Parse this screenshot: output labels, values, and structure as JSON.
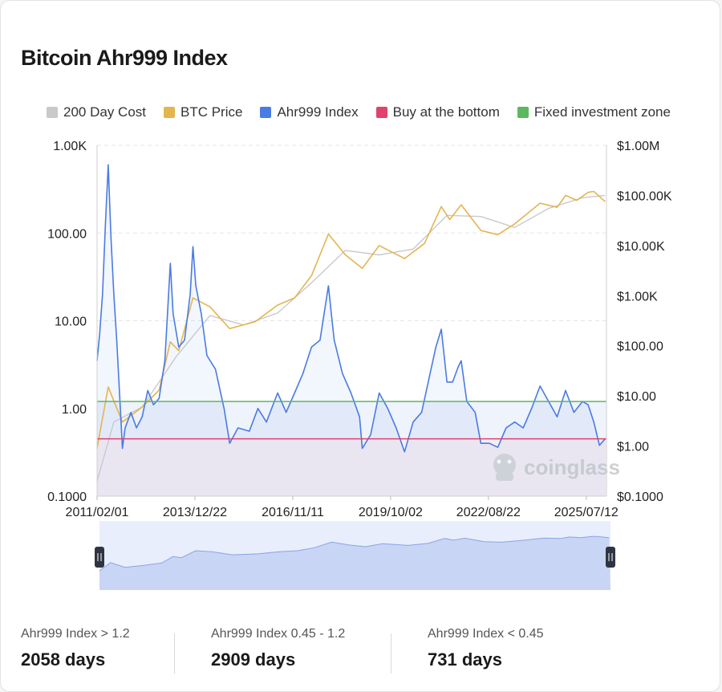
{
  "page": {
    "title": "Bitcoin Ahr999 Index",
    "watermark": "coinglass"
  },
  "legend": [
    {
      "label": "200 Day Cost",
      "color": "#c9c9cc"
    },
    {
      "label": "BTC Price",
      "color": "#e3b54f"
    },
    {
      "label": "Ahr999 Index",
      "color": "#4a7be3"
    },
    {
      "label": "Buy at the bottom",
      "color": "#e0416d"
    },
    {
      "label": "Fixed investment zone",
      "color": "#5cb85c"
    }
  ],
  "chart_data": {
    "type": "line",
    "title": "Bitcoin Ahr999 Index",
    "x_tick_labels": [
      "2011/02/01",
      "2013/12/22",
      "2016/11/11",
      "2019/10/02",
      "2022/08/22",
      "2025/07/12"
    ],
    "y_left": {
      "scale": "log",
      "range": [
        0.1,
        1000
      ],
      "tick_labels": [
        "1.00K",
        "100.00",
        "10.00",
        "1.00",
        "0.1000"
      ]
    },
    "y_right": {
      "scale": "log",
      "range": [
        0.1,
        1000000
      ],
      "tick_labels": [
        "$1.00M",
        "$100.00K",
        "$10.00K",
        "$1.00K",
        "$100.00",
        "$10.00",
        "$1.00",
        "$0.1000"
      ]
    },
    "grid": "horizontal dashed",
    "legend_position": "top",
    "thresholds": [
      {
        "name": "Fixed investment zone",
        "value": 1.2,
        "color": "#5cb85c"
      },
      {
        "name": "Buy at the bottom",
        "value": 0.45,
        "color": "#e0416d"
      }
    ],
    "series": [
      {
        "name": "Ahr999 Index",
        "axis": "left",
        "color": "#4a7be3",
        "points": [
          [
            "2011-02-01",
            3.5
          ],
          [
            "2011-03-01",
            7
          ],
          [
            "2011-04-01",
            20
          ],
          [
            "2011-05-01",
            120
          ],
          [
            "2011-06-01",
            600
          ],
          [
            "2011-07-01",
            90
          ],
          [
            "2011-08-01",
            20
          ],
          [
            "2011-09-01",
            6
          ],
          [
            "2011-10-01",
            1.5
          ],
          [
            "2011-11-01",
            0.35
          ],
          [
            "2011-12-01",
            0.6
          ],
          [
            "2012-02-01",
            0.9
          ],
          [
            "2012-04-01",
            0.6
          ],
          [
            "2012-06-01",
            0.8
          ],
          [
            "2012-08-01",
            1.6
          ],
          [
            "2012-10-01",
            1.1
          ],
          [
            "2012-12-01",
            1.3
          ],
          [
            "2013-02-01",
            3.5
          ],
          [
            "2013-04-01",
            45
          ],
          [
            "2013-05-01",
            12
          ],
          [
            "2013-07-01",
            5
          ],
          [
            "2013-09-01",
            6
          ],
          [
            "2013-11-01",
            20
          ],
          [
            "2013-12-01",
            70
          ],
          [
            "2014-01-01",
            25
          ],
          [
            "2014-03-01",
            12
          ],
          [
            "2014-05-01",
            4
          ],
          [
            "2014-08-01",
            2.8
          ],
          [
            "2014-11-01",
            1
          ],
          [
            "2015-01-01",
            0.4
          ],
          [
            "2015-04-01",
            0.6
          ],
          [
            "2015-08-01",
            0.55
          ],
          [
            "2015-11-01",
            1
          ],
          [
            "2016-02-01",
            0.7
          ],
          [
            "2016-06-01",
            1.5
          ],
          [
            "2016-09-01",
            0.9
          ],
          [
            "2016-12-01",
            1.5
          ],
          [
            "2017-03-01",
            2.5
          ],
          [
            "2017-06-01",
            5
          ],
          [
            "2017-09-01",
            6
          ],
          [
            "2017-12-01",
            25
          ],
          [
            "2018-01-01",
            12
          ],
          [
            "2018-02-01",
            6
          ],
          [
            "2018-05-01",
            2.5
          ],
          [
            "2018-08-01",
            1.5
          ],
          [
            "2018-11-01",
            0.8
          ],
          [
            "2018-12-01",
            0.35
          ],
          [
            "2019-03-01",
            0.5
          ],
          [
            "2019-06-01",
            1.5
          ],
          [
            "2019-09-01",
            1
          ],
          [
            "2019-12-01",
            0.6
          ],
          [
            "2020-03-01",
            0.32
          ],
          [
            "2020-06-01",
            0.7
          ],
          [
            "2020-09-01",
            0.9
          ],
          [
            "2020-12-01",
            2.5
          ],
          [
            "2021-02-01",
            5
          ],
          [
            "2021-04-01",
            8
          ],
          [
            "2021-06-01",
            2
          ],
          [
            "2021-08-01",
            2
          ],
          [
            "2021-10-01",
            3
          ],
          [
            "2021-11-01",
            3.5
          ],
          [
            "2022-01-01",
            1.2
          ],
          [
            "2022-04-01",
            0.9
          ],
          [
            "2022-06-01",
            0.4
          ],
          [
            "2022-09-01",
            0.4
          ],
          [
            "2022-12-01",
            0.36
          ],
          [
            "2023-03-01",
            0.6
          ],
          [
            "2023-06-01",
            0.7
          ],
          [
            "2023-09-01",
            0.6
          ],
          [
            "2023-12-01",
            1
          ],
          [
            "2024-03-01",
            1.8
          ],
          [
            "2024-06-01",
            1.2
          ],
          [
            "2024-09-01",
            0.8
          ],
          [
            "2024-12-01",
            1.6
          ],
          [
            "2025-03-01",
            0.9
          ],
          [
            "2025-06-01",
            1.2
          ],
          [
            "2025-08-01",
            1.1
          ],
          [
            "2025-10-01",
            0.7
          ],
          [
            "2025-12-01",
            0.38
          ],
          [
            "2026-02-01",
            0.45
          ]
        ]
      },
      {
        "name": "BTC Price",
        "axis": "right",
        "color": "#e3b54f",
        "points": [
          [
            "2011-02-01",
            0.9
          ],
          [
            "2011-06-01",
            15
          ],
          [
            "2011-11-01",
            3
          ],
          [
            "2012-06-01",
            6
          ],
          [
            "2012-12-01",
            13
          ],
          [
            "2013-04-01",
            120
          ],
          [
            "2013-07-01",
            80
          ],
          [
            "2013-12-01",
            900
          ],
          [
            "2014-06-01",
            600
          ],
          [
            "2015-01-01",
            220
          ],
          [
            "2015-10-01",
            300
          ],
          [
            "2016-06-01",
            650
          ],
          [
            "2016-12-01",
            900
          ],
          [
            "2017-06-01",
            2500
          ],
          [
            "2017-12-01",
            17000
          ],
          [
            "2018-06-01",
            6500
          ],
          [
            "2018-12-01",
            3500
          ],
          [
            "2019-06-01",
            10000
          ],
          [
            "2020-03-01",
            5500
          ],
          [
            "2020-10-01",
            11000
          ],
          [
            "2021-04-01",
            60000
          ],
          [
            "2021-07-01",
            33000
          ],
          [
            "2021-11-01",
            65000
          ],
          [
            "2022-06-01",
            20000
          ],
          [
            "2022-12-01",
            16500
          ],
          [
            "2023-06-01",
            27000
          ],
          [
            "2024-03-01",
            70000
          ],
          [
            "2024-09-01",
            58000
          ],
          [
            "2024-12-01",
            100000
          ],
          [
            "2025-04-01",
            80000
          ],
          [
            "2025-08-01",
            115000
          ],
          [
            "2025-10-01",
            120000
          ],
          [
            "2026-02-01",
            75000
          ]
        ]
      },
      {
        "name": "200 Day Cost",
        "axis": "right",
        "color": "#c9c9cc",
        "points": [
          [
            "2011-02-01",
            0.2
          ],
          [
            "2011-08-01",
            3
          ],
          [
            "2012-06-01",
            6
          ],
          [
            "2013-06-01",
            60
          ],
          [
            "2014-06-01",
            400
          ],
          [
            "2015-06-01",
            260
          ],
          [
            "2016-06-01",
            450
          ],
          [
            "2017-06-01",
            1800
          ],
          [
            "2018-06-01",
            8000
          ],
          [
            "2019-06-01",
            6500
          ],
          [
            "2020-06-01",
            8500
          ],
          [
            "2021-06-01",
            40000
          ],
          [
            "2022-06-01",
            38000
          ],
          [
            "2023-06-01",
            23000
          ],
          [
            "2024-06-01",
            55000
          ],
          [
            "2025-06-01",
            90000
          ],
          [
            "2026-02-01",
            100000
          ]
        ]
      }
    ]
  },
  "navigator": {
    "start_handle": "start handle",
    "end_handle": "end handle"
  },
  "stats": [
    {
      "label": "Ahr999 Index > 1.2",
      "value": "2058 days"
    },
    {
      "label": "Ahr999 Index 0.45 - 1.2",
      "value": "2909 days"
    },
    {
      "label": "Ahr999 Index < 0.45",
      "value": "731 days"
    }
  ]
}
